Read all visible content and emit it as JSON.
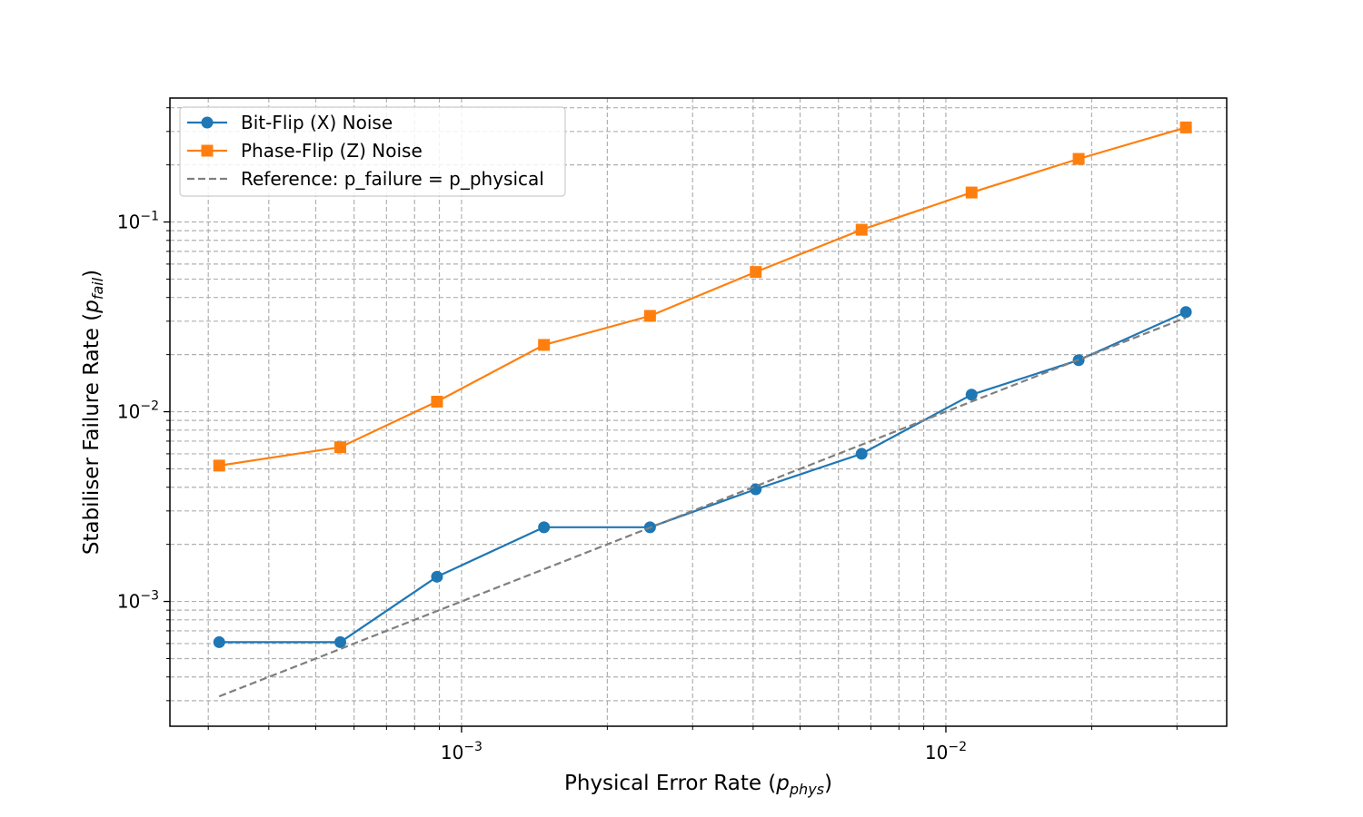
{
  "chart_data": {
    "type": "line",
    "xscale": "log",
    "yscale": "log",
    "xlim": [
      0.00025,
      0.038
    ],
    "ylim": [
      0.00022,
      0.45
    ],
    "xlabel": {
      "main": "Physical Error Rate (",
      "var": "p",
      "sub": "phys",
      "close": ")"
    },
    "ylabel": {
      "main": "Stabiliser Failure Rate (",
      "var": "p",
      "sub": "fail",
      "close": ")"
    },
    "x_ticks": [
      {
        "value": 0.001,
        "base": "10",
        "exp": "−3"
      },
      {
        "value": 0.01,
        "base": "10",
        "exp": "−2"
      }
    ],
    "y_ticks": [
      {
        "value": 0.001,
        "base": "10",
        "exp": "−3"
      },
      {
        "value": 0.01,
        "base": "10",
        "exp": "−2"
      },
      {
        "value": 0.1,
        "base": "10",
        "exp": "−1"
      }
    ],
    "x": [
      0.000316,
      0.000562,
      0.00089,
      0.00148,
      0.00245,
      0.00405,
      0.0067,
      0.0113,
      0.0188,
      0.0313
    ],
    "series": [
      {
        "name": "Bit-Flip (X) Noise",
        "color": "#1f77b4",
        "marker": "circle",
        "values": [
          0.00061,
          0.00061,
          0.00135,
          0.00246,
          0.00246,
          0.0039,
          0.006,
          0.0123,
          0.0187,
          0.0335
        ]
      },
      {
        "name": "Phase-Flip (Z) Noise",
        "color": "#ff7f0e",
        "marker": "square",
        "values": [
          0.0052,
          0.0065,
          0.0113,
          0.0225,
          0.032,
          0.0545,
          0.091,
          0.143,
          0.215,
          0.315
        ]
      },
      {
        "name": "Reference: p_failure = p_physical",
        "color": "#7f7f7f",
        "marker": "none",
        "dashed": true,
        "values": [
          0.000316,
          0.000562,
          0.00089,
          0.00148,
          0.00245,
          0.00405,
          0.0067,
          0.0113,
          0.0188,
          0.0313
        ]
      }
    ],
    "legend_position": "top-left",
    "grid": true
  }
}
